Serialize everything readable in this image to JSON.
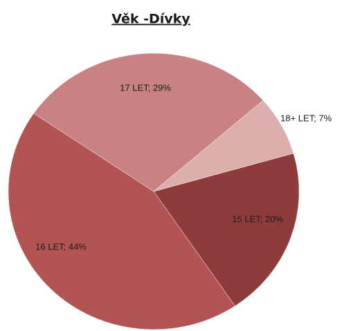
{
  "chart_data": {
    "type": "pie",
    "title": "Věk -Dívky",
    "categories": [
      "15 LET; 20%",
      "16 LET; 44%",
      "17 LET; 29%",
      "18+ LET; 7%"
    ],
    "values": [
      20,
      44,
      29,
      7
    ],
    "colors": [
      "#8e3b3b",
      "#b45353",
      "#c98282",
      "#dcafae"
    ]
  }
}
